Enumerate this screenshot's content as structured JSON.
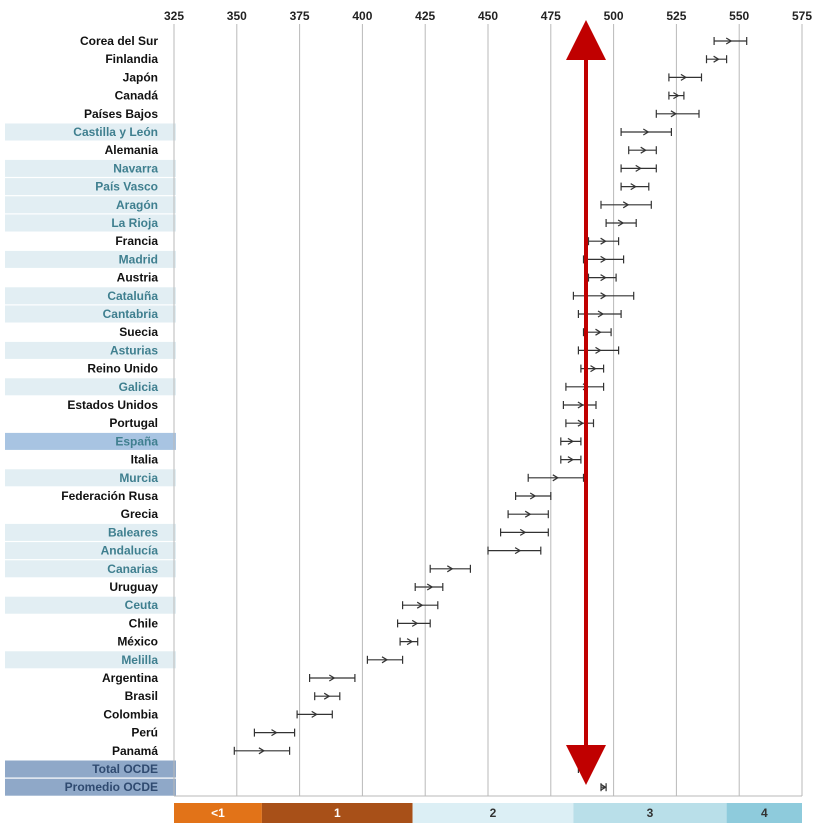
{
  "chart_data": {
    "type": "scatter",
    "title": "",
    "xlabel": "",
    "ylabel": "",
    "xlim": [
      325,
      575
    ],
    "x_ticks": [
      325,
      350,
      375,
      400,
      425,
      450,
      475,
      500,
      525,
      550,
      575
    ],
    "grid": "vertical",
    "reference_line": {
      "x": 489,
      "color": "#c00000",
      "style": "double-headed-arrow"
    },
    "colors": {
      "country_text": "#111111",
      "region_text": "#3f7f8f",
      "region_highlight": "#e2eef3",
      "spain_highlight": "#a8c4e2",
      "ocde_highlight": "#8fa8c8",
      "grid": "#b9b9b9",
      "marker": "#333333"
    },
    "rows": [
      {
        "label": "Corea del Sur",
        "kind": "country",
        "mean": 546,
        "low": 540,
        "high": 553
      },
      {
        "label": "Finlandia",
        "kind": "country",
        "mean": 541,
        "low": 537,
        "high": 545
      },
      {
        "label": "Japón",
        "kind": "country",
        "mean": 528,
        "low": 522,
        "high": 535
      },
      {
        "label": "Canadá",
        "kind": "country",
        "mean": 525,
        "low": 522,
        "high": 528
      },
      {
        "label": "Países Bajos",
        "kind": "country",
        "mean": 524,
        "low": 517,
        "high": 534
      },
      {
        "label": "Castilla y León",
        "kind": "region",
        "mean": 513,
        "low": 503,
        "high": 523
      },
      {
        "label": "Alemania",
        "kind": "country",
        "mean": 512,
        "low": 506,
        "high": 517
      },
      {
        "label": "Navarra",
        "kind": "region",
        "mean": 510,
        "low": 503,
        "high": 517
      },
      {
        "label": "País Vasco",
        "kind": "region",
        "mean": 508,
        "low": 503,
        "high": 514
      },
      {
        "label": "Aragón",
        "kind": "region",
        "mean": 505,
        "low": 495,
        "high": 515
      },
      {
        "label": "La Rioja",
        "kind": "region",
        "mean": 503,
        "low": 497,
        "high": 509
      },
      {
        "label": "Francia",
        "kind": "country",
        "mean": 496,
        "low": 490,
        "high": 502
      },
      {
        "label": "Madrid",
        "kind": "region",
        "mean": 496,
        "low": 488,
        "high": 504
      },
      {
        "label": "Austria",
        "kind": "country",
        "mean": 496,
        "low": 490,
        "high": 501
      },
      {
        "label": "Cataluña",
        "kind": "region",
        "mean": 496,
        "low": 484,
        "high": 508
      },
      {
        "label": "Cantabria",
        "kind": "region",
        "mean": 495,
        "low": 486,
        "high": 503
      },
      {
        "label": "Suecia",
        "kind": "country",
        "mean": 494,
        "low": 488,
        "high": 499
      },
      {
        "label": "Asturias",
        "kind": "region",
        "mean": 494,
        "low": 486,
        "high": 502
      },
      {
        "label": "Reino Unido",
        "kind": "country",
        "mean": 492,
        "low": 487,
        "high": 496
      },
      {
        "label": "Galicia",
        "kind": "region",
        "mean": 489,
        "low": 481,
        "high": 496
      },
      {
        "label": "Estados Unidos",
        "kind": "country",
        "mean": 487,
        "low": 480,
        "high": 493
      },
      {
        "label": "Portugal",
        "kind": "country",
        "mean": 487,
        "low": 481,
        "high": 492
      },
      {
        "label": "España",
        "kind": "spain",
        "mean": 483,
        "low": 479,
        "high": 487
      },
      {
        "label": "Italia",
        "kind": "country",
        "mean": 483,
        "low": 479,
        "high": 487
      },
      {
        "label": "Murcia",
        "kind": "region",
        "mean": 477,
        "low": 466,
        "high": 488
      },
      {
        "label": "Federación Rusa",
        "kind": "country",
        "mean": 468,
        "low": 461,
        "high": 475
      },
      {
        "label": "Grecia",
        "kind": "country",
        "mean": 466,
        "low": 458,
        "high": 474
      },
      {
        "label": "Baleares",
        "kind": "region",
        "mean": 464,
        "low": 455,
        "high": 474
      },
      {
        "label": "Andalucía",
        "kind": "region",
        "mean": 462,
        "low": 450,
        "high": 471
      },
      {
        "label": "Canarias",
        "kind": "region",
        "mean": 435,
        "low": 427,
        "high": 443
      },
      {
        "label": "Uruguay",
        "kind": "country",
        "mean": 427,
        "low": 421,
        "high": 432
      },
      {
        "label": "Ceuta",
        "kind": "region",
        "mean": 423,
        "low": 416,
        "high": 430
      },
      {
        "label": "Chile",
        "kind": "country",
        "mean": 421,
        "low": 414,
        "high": 427
      },
      {
        "label": "México",
        "kind": "country",
        "mean": 419,
        "low": 415,
        "high": 422
      },
      {
        "label": "Melilla",
        "kind": "region",
        "mean": 409,
        "low": 402,
        "high": 416
      },
      {
        "label": "Argentina",
        "kind": "country",
        "mean": 388,
        "low": 379,
        "high": 397
      },
      {
        "label": "Brasil",
        "kind": "country",
        "mean": 386,
        "low": 381,
        "high": 391
      },
      {
        "label": "Colombia",
        "kind": "country",
        "mean": 381,
        "low": 374,
        "high": 388
      },
      {
        "label": "Perú",
        "kind": "country",
        "mean": 365,
        "low": 357,
        "high": 373
      },
      {
        "label": "Panamá",
        "kind": "country",
        "mean": 360,
        "low": 349,
        "high": 371
      },
      {
        "label": "Total OCDE",
        "kind": "ocde",
        "mean": 488,
        "low": 486,
        "high": 490
      },
      {
        "label": "Promedio OCDE",
        "kind": "ocde",
        "mean": 496,
        "low": 495,
        "high": 497
      }
    ],
    "levels": [
      {
        "label": "<1",
        "from": 325,
        "to": 360,
        "color": "#e27318",
        "text_color": "#ffffff"
      },
      {
        "label": "1",
        "from": 360,
        "to": 420,
        "color": "#a85018",
        "text_color": "#ffffff"
      },
      {
        "label": "2",
        "from": 420,
        "to": 484,
        "color": "#dceff5",
        "text_color": "#333333"
      },
      {
        "label": "3",
        "from": 484,
        "to": 545,
        "color": "#b9dfe9",
        "text_color": "#333333"
      },
      {
        "label": "4",
        "from": 545,
        "to": 575,
        "color": "#8ecbdc",
        "text_color": "#333333"
      }
    ]
  }
}
